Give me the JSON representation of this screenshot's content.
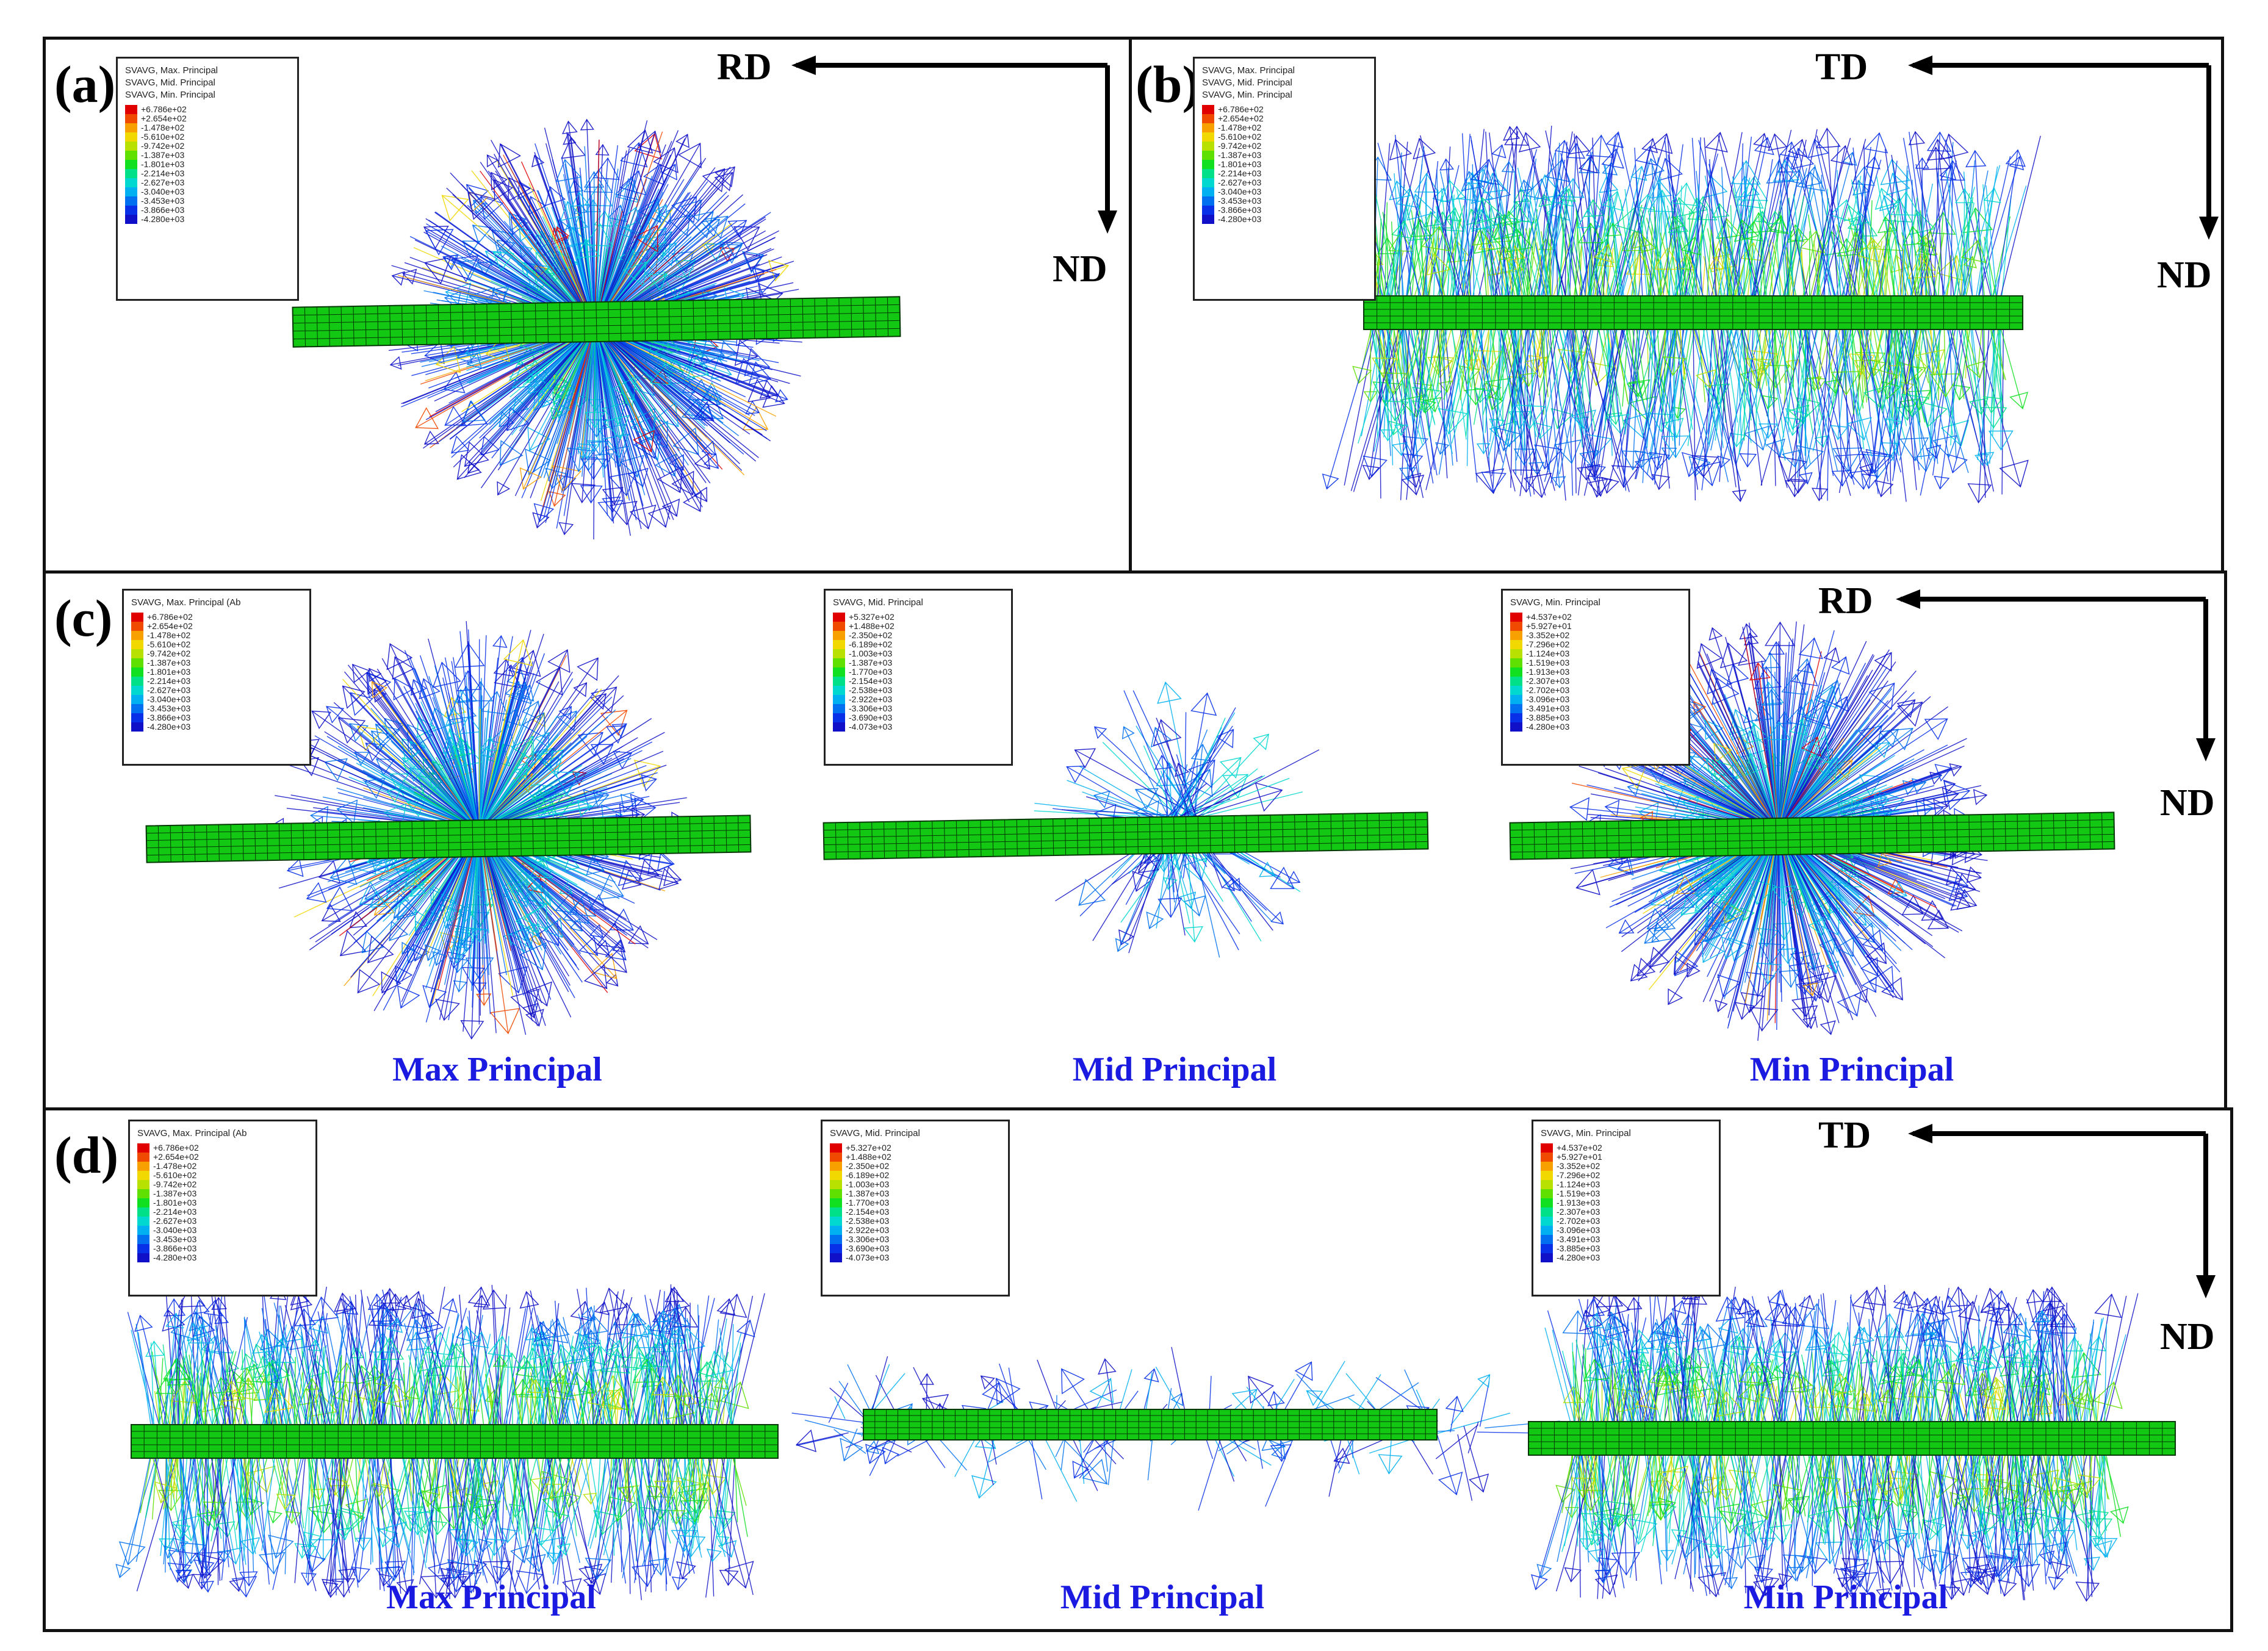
{
  "panels": {
    "a": {
      "label": "(a)",
      "axis_h": "RD",
      "axis_v": "ND",
      "legend": {
        "titles": [
          "SVAVG, Max. Principal",
          "SVAVG, Mid. Principal",
          "SVAVG, Min. Principal"
        ],
        "values": [
          "+6.786e+02",
          "+2.654e+02",
          "-1.478e+02",
          "-5.610e+02",
          "-9.742e+02",
          "-1.387e+03",
          "-1.801e+03",
          "-2.214e+03",
          "-2.627e+03",
          "-3.040e+03",
          "-3.453e+03",
          "-3.866e+03",
          "-4.280e+03"
        ]
      }
    },
    "b": {
      "label": "(b)",
      "axis_h": "TD",
      "axis_v": "ND",
      "legend": {
        "titles": [
          "SVAVG, Max. Principal",
          "SVAVG, Mid. Principal",
          "SVAVG, Min. Principal"
        ],
        "values": [
          "+6.786e+02",
          "+2.654e+02",
          "-1.478e+02",
          "-5.610e+02",
          "-9.742e+02",
          "-1.387e+03",
          "-1.801e+03",
          "-2.214e+03",
          "-2.627e+03",
          "-3.040e+03",
          "-3.453e+03",
          "-3.866e+03",
          "-4.280e+03"
        ]
      }
    },
    "c": {
      "label": "(c)",
      "axis_h": "RD",
      "axis_v": "ND",
      "subfigures": [
        {
          "caption": "Max Principal",
          "legend": {
            "titles": [
              "SVAVG, Max. Principal (Ab"
            ],
            "values": [
              "+6.786e+02",
              "+2.654e+02",
              "-1.478e+02",
              "-5.610e+02",
              "-9.742e+02",
              "-1.387e+03",
              "-1.801e+03",
              "-2.214e+03",
              "-2.627e+03",
              "-3.040e+03",
              "-3.453e+03",
              "-3.866e+03",
              "-4.280e+03"
            ]
          }
        },
        {
          "caption": "Mid Principal",
          "legend": {
            "titles": [
              "SVAVG, Mid. Principal"
            ],
            "values": [
              "+5.327e+02",
              "+1.488e+02",
              "-2.350e+02",
              "-6.189e+02",
              "-1.003e+03",
              "-1.387e+03",
              "-1.770e+03",
              "-2.154e+03",
              "-2.538e+03",
              "-2.922e+03",
              "-3.306e+03",
              "-3.690e+03",
              "-4.073e+03"
            ]
          }
        },
        {
          "caption": "Min Principal",
          "legend": {
            "titles": [
              "SVAVG, Min. Principal"
            ],
            "values": [
              "+4.537e+02",
              "+5.927e+01",
              "-3.352e+02",
              "-7.296e+02",
              "-1.124e+03",
              "-1.519e+03",
              "-1.913e+03",
              "-2.307e+03",
              "-2.702e+03",
              "-3.096e+03",
              "-3.491e+03",
              "-3.885e+03",
              "-4.280e+03"
            ]
          }
        }
      ]
    },
    "d": {
      "label": "(d)",
      "axis_h": "TD",
      "axis_v": "ND",
      "subfigures": [
        {
          "caption": "Max Principal",
          "legend": {
            "titles": [
              "SVAVG, Max. Principal (Ab"
            ],
            "values": [
              "+6.786e+02",
              "+2.654e+02",
              "-1.478e+02",
              "-5.610e+02",
              "-9.742e+02",
              "-1.387e+03",
              "-1.801e+03",
              "-2.214e+03",
              "-2.627e+03",
              "-3.040e+03",
              "-3.453e+03",
              "-3.866e+03",
              "-4.280e+03"
            ]
          }
        },
        {
          "caption": "Mid Principal",
          "legend": {
            "titles": [
              "SVAVG, Mid. Principal"
            ],
            "values": [
              "+5.327e+02",
              "+1.488e+02",
              "-2.350e+02",
              "-6.189e+02",
              "-1.003e+03",
              "-1.387e+03",
              "-1.770e+03",
              "-2.154e+03",
              "-2.538e+03",
              "-2.922e+03",
              "-3.306e+03",
              "-3.690e+03",
              "-4.073e+03"
            ]
          }
        },
        {
          "caption": "Min Principal",
          "legend": {
            "titles": [
              "SVAVG, Min. Principal"
            ],
            "values": [
              "+4.537e+02",
              "+5.927e+01",
              "-3.352e+02",
              "-7.296e+02",
              "-1.124e+03",
              "-1.519e+03",
              "-1.913e+03",
              "-2.307e+03",
              "-2.702e+03",
              "-3.096e+03",
              "-3.491e+03",
              "-3.885e+03",
              "-4.280e+03"
            ]
          }
        }
      ]
    }
  },
  "colors": {
    "scale": [
      "#e00000",
      "#f04a00",
      "#f8a000",
      "#f0d800",
      "#b8e000",
      "#60e000",
      "#10e020",
      "#00e088",
      "#00d8d0",
      "#00b0f0",
      "#0070f0",
      "#0830e8",
      "#1010c8"
    ],
    "beam": "#12c812",
    "beam_grid": "#063806",
    "caption": "#1a1ae0",
    "frame": "#111111"
  }
}
